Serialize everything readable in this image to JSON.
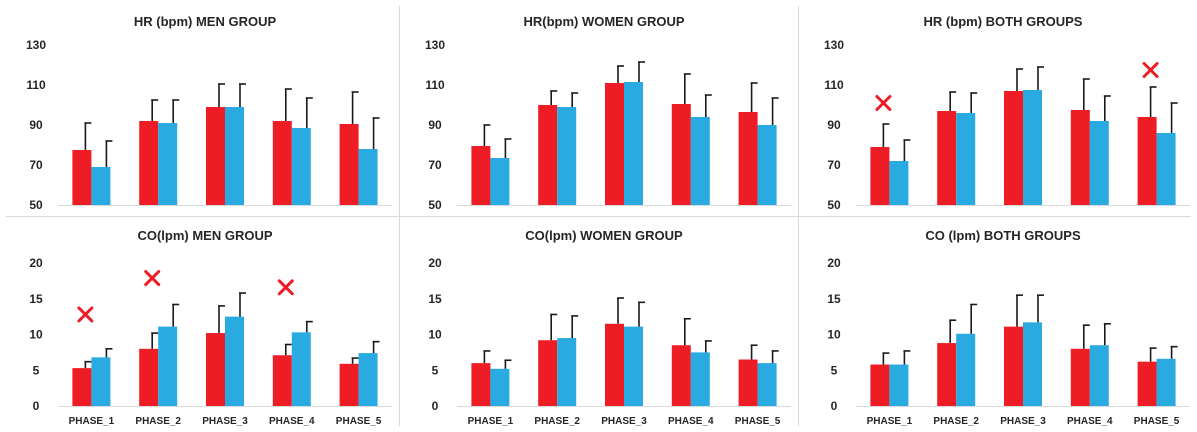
{
  "colors": {
    "series_a": "#ee1c25",
    "series_b": "#29abe2",
    "error_bar": "#1a1a1a",
    "marker": "#ee1c25"
  },
  "chart_data": [
    {
      "type": "bar",
      "title": "HR (bpm) MEN GROUP",
      "categories": [
        "",
        "",
        "",
        "",
        ""
      ],
      "ylim": [
        50,
        130
      ],
      "yticks": [
        50,
        70,
        90,
        110,
        130
      ],
      "series": [
        {
          "values": [
            77.5,
            92,
            99,
            92,
            90.5
          ],
          "errors": [
            13.5,
            10.5,
            11.5,
            16,
            16
          ]
        },
        {
          "values": [
            69,
            91,
            99,
            88.5,
            78
          ],
          "errors": [
            13,
            11.5,
            11.5,
            15,
            15.5
          ]
        }
      ],
      "markers": []
    },
    {
      "type": "bar",
      "title": "HR(bpm) WOMEN GROUP",
      "categories": [
        "",
        "",
        "",
        "",
        ""
      ],
      "ylim": [
        50,
        130
      ],
      "yticks": [
        50,
        70,
        90,
        110,
        130
      ],
      "series": [
        {
          "values": [
            79.5,
            100,
            111,
            100.5,
            96.5
          ],
          "errors": [
            10.5,
            7,
            8.5,
            15,
            14.5
          ]
        },
        {
          "values": [
            73.5,
            99,
            111.5,
            94,
            90
          ],
          "errors": [
            9.5,
            7,
            10,
            11,
            13.5
          ]
        }
      ],
      "markers": []
    },
    {
      "type": "bar",
      "title": "HR (bpm) BOTH GROUPS",
      "categories": [
        "",
        "",
        "",
        "",
        ""
      ],
      "ylim": [
        50,
        130
      ],
      "yticks": [
        50,
        70,
        90,
        110,
        130
      ],
      "series": [
        {
          "values": [
            79,
            97,
            107,
            97.5,
            94
          ],
          "errors": [
            11.5,
            9.5,
            11,
            15.5,
            15
          ]
        },
        {
          "values": [
            72,
            96,
            107.5,
            92,
            86
          ],
          "errors": [
            10.5,
            10,
            11.5,
            12.5,
            15
          ]
        }
      ],
      "markers": [
        {
          "category": 0,
          "value": 101
        },
        {
          "category": 4,
          "value": 117.5
        }
      ]
    },
    {
      "type": "bar",
      "title": "CO(lpm) MEN GROUP",
      "categories": [
        "PHASE_1",
        "PHASE_2",
        "PHASE_3",
        "PHASE_4",
        "PHASE_5"
      ],
      "ylim": [
        0,
        20
      ],
      "yticks": [
        0,
        5,
        10,
        15,
        20
      ],
      "series": [
        {
          "values": [
            5.3,
            8,
            10.2,
            7.1,
            5.9
          ],
          "errors": [
            0.9,
            2.2,
            3.8,
            1.5,
            0.8
          ]
        },
        {
          "values": [
            6.8,
            11.1,
            12.5,
            10.3,
            7.4
          ],
          "errors": [
            1.2,
            3.1,
            3.3,
            1.5,
            1.6
          ]
        }
      ],
      "markers": [
        {
          "category": 0,
          "value": 12.8
        },
        {
          "category": 1,
          "value": 17.9
        },
        {
          "category": 3,
          "value": 16.6
        }
      ]
    },
    {
      "type": "bar",
      "title": "CO(lpm) WOMEN GROUP",
      "categories": [
        "PHASE_1",
        "PHASE_2",
        "PHASE_3",
        "PHASE_4",
        "PHASE_5"
      ],
      "ylim": [
        0,
        20
      ],
      "yticks": [
        0,
        5,
        10,
        15,
        20
      ],
      "series": [
        {
          "values": [
            6,
            9.2,
            11.5,
            8.5,
            6.5
          ],
          "errors": [
            1.7,
            3.6,
            3.6,
            3.7,
            2
          ]
        },
        {
          "values": [
            5.2,
            9.5,
            11.1,
            7.5,
            6
          ],
          "errors": [
            1.2,
            3.1,
            3.4,
            1.6,
            1.7
          ]
        }
      ],
      "markers": []
    },
    {
      "type": "bar",
      "title": "CO (lpm) BOTH GROUPS",
      "categories": [
        "PHASE_1",
        "PHASE_2",
        "PHASE_3",
        "PHASE_4",
        "PHASE_5"
      ],
      "ylim": [
        0,
        20
      ],
      "yticks": [
        0,
        5,
        10,
        15,
        20
      ],
      "series": [
        {
          "values": [
            5.8,
            8.8,
            11.1,
            8,
            6.2
          ],
          "errors": [
            1.6,
            3.2,
            4.4,
            3.3,
            1.9
          ]
        },
        {
          "values": [
            5.8,
            10.1,
            11.7,
            8.5,
            6.6
          ],
          "errors": [
            1.9,
            4.1,
            3.8,
            3,
            1.7
          ]
        }
      ],
      "markers": []
    }
  ]
}
